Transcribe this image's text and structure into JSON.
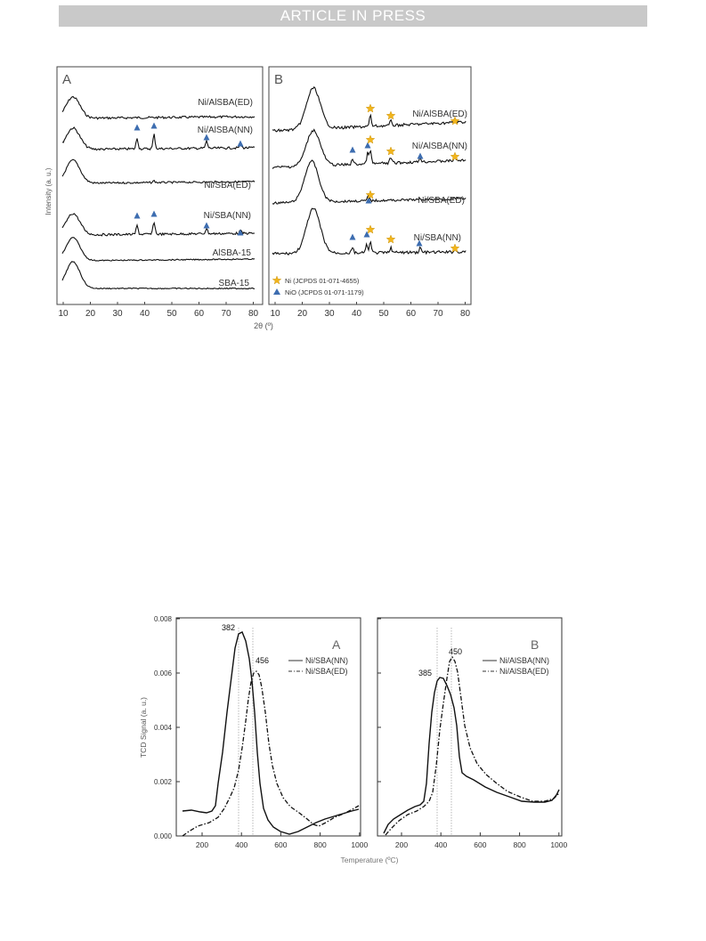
{
  "header": {
    "banner": "ARTICLE IN PRESS"
  },
  "xrd_figure": {
    "ylabel": "Intensity (a. u.)",
    "xlabel": "2θ (º)",
    "panels": [
      {
        "letter": "A",
        "traces": [
          "Ni/AlSBA(ED)",
          "Ni/AlSBA(NN)",
          "Ni/SBA(ED)",
          "Ni/SBA(NN)",
          "AlSBA-15",
          "SBA-15"
        ]
      },
      {
        "letter": "B",
        "traces": [
          "Ni/AlSBA(ED)",
          "Ni/AlSBA(NN)",
          "Ni/SBA(ED)",
          "Ni/SBA(NN)"
        ],
        "legend": [
          "Ni (JCPDS 01-071-4655)",
          "NiO (JCPDS 01-071-1179)"
        ]
      }
    ],
    "xticks": [
      "10",
      "20",
      "30",
      "40",
      "50",
      "60",
      "70",
      "80"
    ]
  },
  "tpr_figure": {
    "ylabel": "TCD Signal (a. u.)",
    "xlabel": "Temperature (ºC)",
    "yticks": [
      "0.000",
      "0.002",
      "0.004",
      "0.006",
      "0.008"
    ],
    "xticks": [
      "200",
      "400",
      "600",
      "800",
      "1000"
    ],
    "panels": [
      {
        "letter": "A",
        "legend": [
          "Ni/SBA(NN)",
          "Ni/SBA(ED)"
        ],
        "peaks": [
          "382",
          "456"
        ]
      },
      {
        "letter": "B",
        "legend": [
          "Ni/AlSBA(NN)",
          "Ni/AlSBA(ED)"
        ],
        "peaks": [
          "385",
          "450"
        ]
      }
    ]
  },
  "colors": {
    "ni_star": "#f2b51c",
    "nio_triangle": "#3d6db0",
    "banner": "#c9c9c9"
  }
}
